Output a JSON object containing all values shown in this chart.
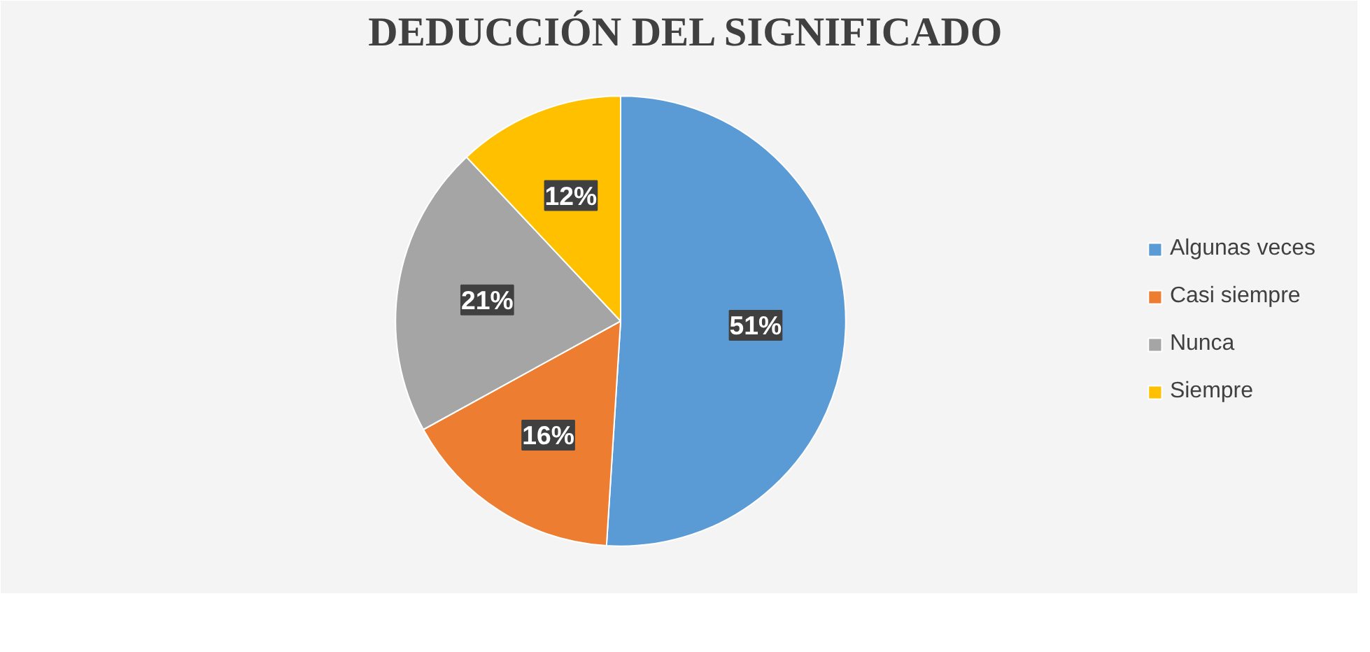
{
  "chart_data": {
    "type": "pie",
    "title": "DEDUCCIÓN DEL SIGNIFICADO",
    "categories": [
      "Algunas veces",
      "Casi siempre",
      "Nunca",
      "Siempre"
    ],
    "values": [
      51,
      16,
      21,
      12
    ],
    "colors": [
      "#5b9bd5",
      "#ed7d31",
      "#a5a5a5",
      "#ffc000"
    ],
    "value_labels": [
      "51%",
      "16%",
      "21%",
      "12%"
    ],
    "legend": "right"
  }
}
